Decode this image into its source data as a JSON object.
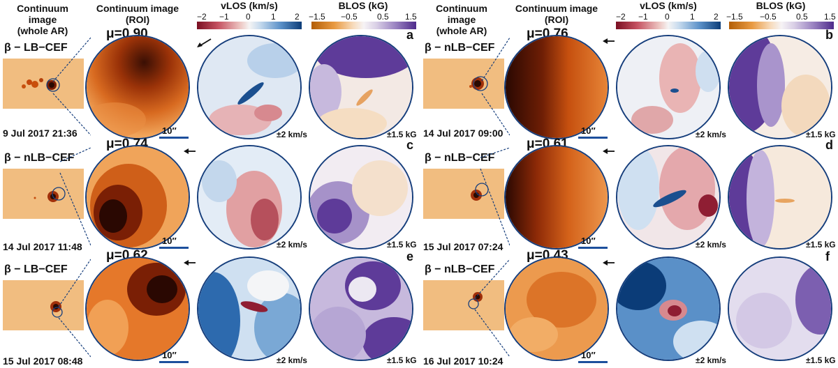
{
  "headers": {
    "left": {
      "whole_ar": "Continuum image\n(whole AR)",
      "roi": "Continuum image\n(ROI)"
    },
    "right": {
      "whole_ar": "Continuum image\n(whole AR)",
      "roi": "Continuum image\n(ROI)"
    }
  },
  "colorbars": {
    "vlos": {
      "label": "vLOS (km/s)",
      "ticks": [
        "−2",
        "−1",
        "0",
        "1",
        "2"
      ]
    },
    "blos": {
      "label": "BLOS (kG)",
      "ticks": [
        "−1.5",
        "−0.5",
        "0.5",
        "1.5"
      ]
    }
  },
  "units": {
    "scale": "10′′",
    "vrange": "±2 km/s",
    "brange": "±1.5 kG"
  },
  "panels": [
    {
      "id": "a",
      "mu": "μ=0.90",
      "beta": "β − LB−CEF",
      "date": "9 Jul 2017 21:36"
    },
    {
      "id": "b",
      "mu": "μ=0.76",
      "beta": "β − nLB−CEF",
      "date": "14 Jul 2017 09:00"
    },
    {
      "id": "c",
      "mu": "μ=0.74",
      "beta": "β − nLB−CEF",
      "date": "14 Jul 2017 11:48"
    },
    {
      "id": "d",
      "mu": "μ=0.61",
      "beta": "β − nLB−CEF",
      "date": "15 Jul 2017 07:24"
    },
    {
      "id": "e",
      "mu": "μ=0.62",
      "beta": "β − LB−CEF",
      "date": "15 Jul 2017 08:48"
    },
    {
      "id": "f",
      "mu": "μ=0.43",
      "beta": "β − nLB−CEF",
      "date": "16 Jul 2017 10:24"
    }
  ],
  "colors": {
    "circle_border": "#163e7c",
    "scale_bar": "#1c4f9c"
  }
}
